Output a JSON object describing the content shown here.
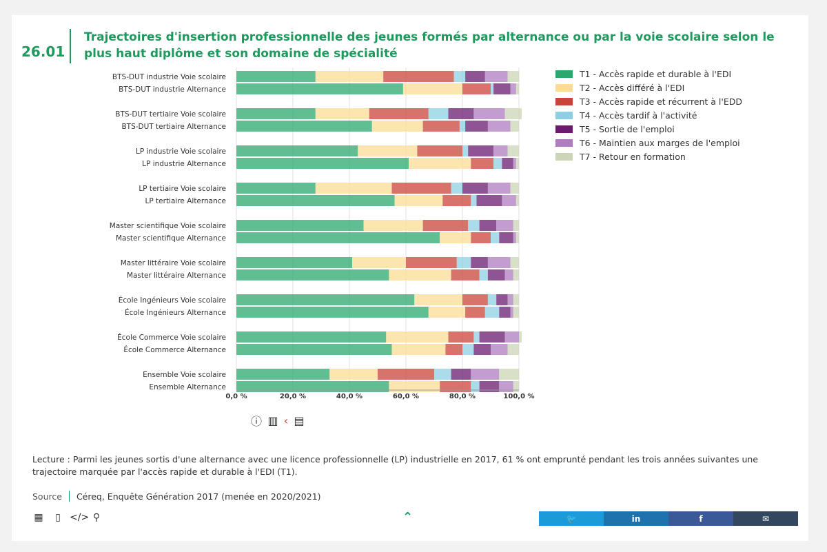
{
  "figure_number": "26.01",
  "title": "Trajectoires d'insertion professionnelle des jeunes formés par alternance ou par la voie scolaire selon le plus haut diplôme et son domaine de spécialité",
  "legend": [
    {
      "label": "T1 - Accès rapide et durable à l'EDI",
      "color": "#2ca86f"
    },
    {
      "label": "T2 - Accès différé à l'EDI",
      "color": "#fcdc94"
    },
    {
      "label": "T3 - Accès rapide et récurrent à l'EDD",
      "color": "#c9443a"
    },
    {
      "label": "T4 - Accès tardif à l'activité",
      "color": "#8dd0e3"
    },
    {
      "label": "T5 - Sortie de l'emploi",
      "color": "#6a1b6f"
    },
    {
      "label": "T6 - Maintien aux marges de l'emploi",
      "color": "#b07cc0"
    },
    {
      "label": "T7 - Retour en formation",
      "color": "#ccd5b6"
    }
  ],
  "chart_data": {
    "type": "bar",
    "orientation": "horizontal",
    "stacked": true,
    "xlim": [
      0,
      100
    ],
    "xticks": [
      "0,0 %",
      "20,0 %",
      "40,0 %",
      "60,0 %",
      "80,0 %",
      "100,0 %"
    ],
    "categories": [
      "BTS-DUT industrie Voie scolaire",
      "BTS-DUT industrie Alternance",
      "BTS-DUT tertiaire Voie scolaire",
      "BTS-DUT tertiaire Alternance",
      "LP industrie Voie scolaire",
      "LP industrie Alternance",
      "LP tertiaire Voie scolaire",
      "LP tertiaire Alternance",
      "Master scientifique Voie scolaire",
      "Master scientifique Alternance",
      "Master littéraire Voie scolaire",
      "Master littéraire Alternance",
      "École Ingénieurs Voie scolaire",
      "École Ingénieurs Alternance",
      "École Commerce Voie scolaire",
      "École Commerce Alternance",
      "Ensemble Voie scolaire",
      "Ensemble Alternance"
    ],
    "series": [
      {
        "name": "T1 - Accès rapide et durable à l'EDI",
        "values": [
          28,
          59,
          28,
          48,
          43,
          61,
          28,
          56,
          45,
          72,
          41,
          54,
          63,
          68,
          53,
          55,
          33,
          54
        ]
      },
      {
        "name": "T2 - Accès différé à l'EDI",
        "values": [
          24,
          21,
          19,
          18,
          21,
          22,
          27,
          17,
          21,
          11,
          19,
          22,
          17,
          13,
          22,
          19,
          17,
          18
        ]
      },
      {
        "name": "T3 - Accès rapide et récurrent à l'EDD",
        "values": [
          25,
          10,
          21,
          13,
          16,
          8,
          21,
          10,
          16,
          7,
          18,
          10,
          9,
          7,
          9,
          6,
          20,
          11
        ]
      },
      {
        "name": "T4 - Accès tardif à l'activité",
        "values": [
          4,
          1,
          7,
          2,
          2,
          3,
          4,
          2,
          4,
          3,
          5,
          3,
          3,
          5,
          2,
          4,
          6,
          3
        ]
      },
      {
        "name": "T5 - Sortie de l'emploi",
        "values": [
          7,
          6,
          9,
          8,
          9,
          4,
          9,
          9,
          6,
          5,
          6,
          6,
          4,
          4,
          9,
          6,
          7,
          7
        ]
      },
      {
        "name": "T6 - Maintien aux marges de l'emploi",
        "values": [
          8,
          2,
          11,
          8,
          5,
          1,
          8,
          5,
          6,
          1,
          8,
          3,
          2,
          1,
          5,
          6,
          10,
          5
        ]
      },
      {
        "name": "T7 - Retour en formation",
        "values": [
          4,
          1,
          6,
          3,
          4,
          1,
          3,
          1,
          2,
          1,
          3,
          2,
          2,
          2,
          1,
          4,
          7,
          2
        ]
      }
    ]
  },
  "lecture": "Lecture : Parmi les jeunes sortis d'une alternance avec une licence professionnelle (LP) industrielle en 2017, 61 % ont emprunté pendant les trois années suivantes une trajectoire marquée par l'accès rapide et durable à l'EDI (T1).",
  "source_label": "Source",
  "source_text": "Céreq, Enquête Génération 2017 (menée en 2020/2021)",
  "icons": {
    "info": "info-icon",
    "chart": "chart-icon",
    "table": "table-icon",
    "excel": "excel-icon",
    "document": "document-icon",
    "embed": "code-icon",
    "link": "link-icon",
    "scroll_top": "double-chevron-up-icon"
  },
  "share": [
    {
      "name": "twitter",
      "color": "#1d9bd8"
    },
    {
      "name": "linkedin",
      "color": "#1e73ad"
    },
    {
      "name": "facebook",
      "color": "#3b5998"
    },
    {
      "name": "email",
      "color": "#33485f"
    }
  ]
}
